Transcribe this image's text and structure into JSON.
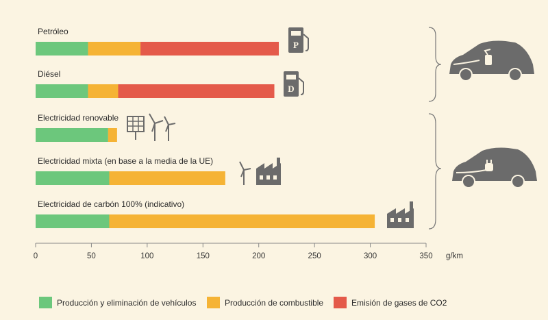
{
  "chart_data": {
    "type": "bar",
    "stacked": true,
    "orientation": "horizontal",
    "categories": [
      "Petróleo",
      "Diésel",
      "Electricidad renovable",
      "Electricidad mixta (en base a la media de la UE)",
      "Electricidad de carbón 100% (indicativo)"
    ],
    "series": [
      {
        "name": "Producción y eliminación de vehículos",
        "color": "#6cc77c",
        "values": [
          47,
          47,
          65,
          66,
          66
        ]
      },
      {
        "name": "Producción de combustible",
        "color": "#f5b335",
        "values": [
          47,
          27,
          8,
          104,
          238
        ]
      },
      {
        "name": "Emisión de gases de CO2",
        "color": "#e45a4a",
        "values": [
          124,
          140,
          0,
          0,
          0
        ]
      }
    ],
    "xlim": [
      0,
      350
    ],
    "xticks": [
      "0",
      "50",
      "100",
      "150",
      "200",
      "250",
      "300",
      "350"
    ],
    "xunit": "g/km",
    "legend_position": "bottom",
    "fuel_badges": {
      "petrol": "P",
      "diesel": "D"
    }
  }
}
